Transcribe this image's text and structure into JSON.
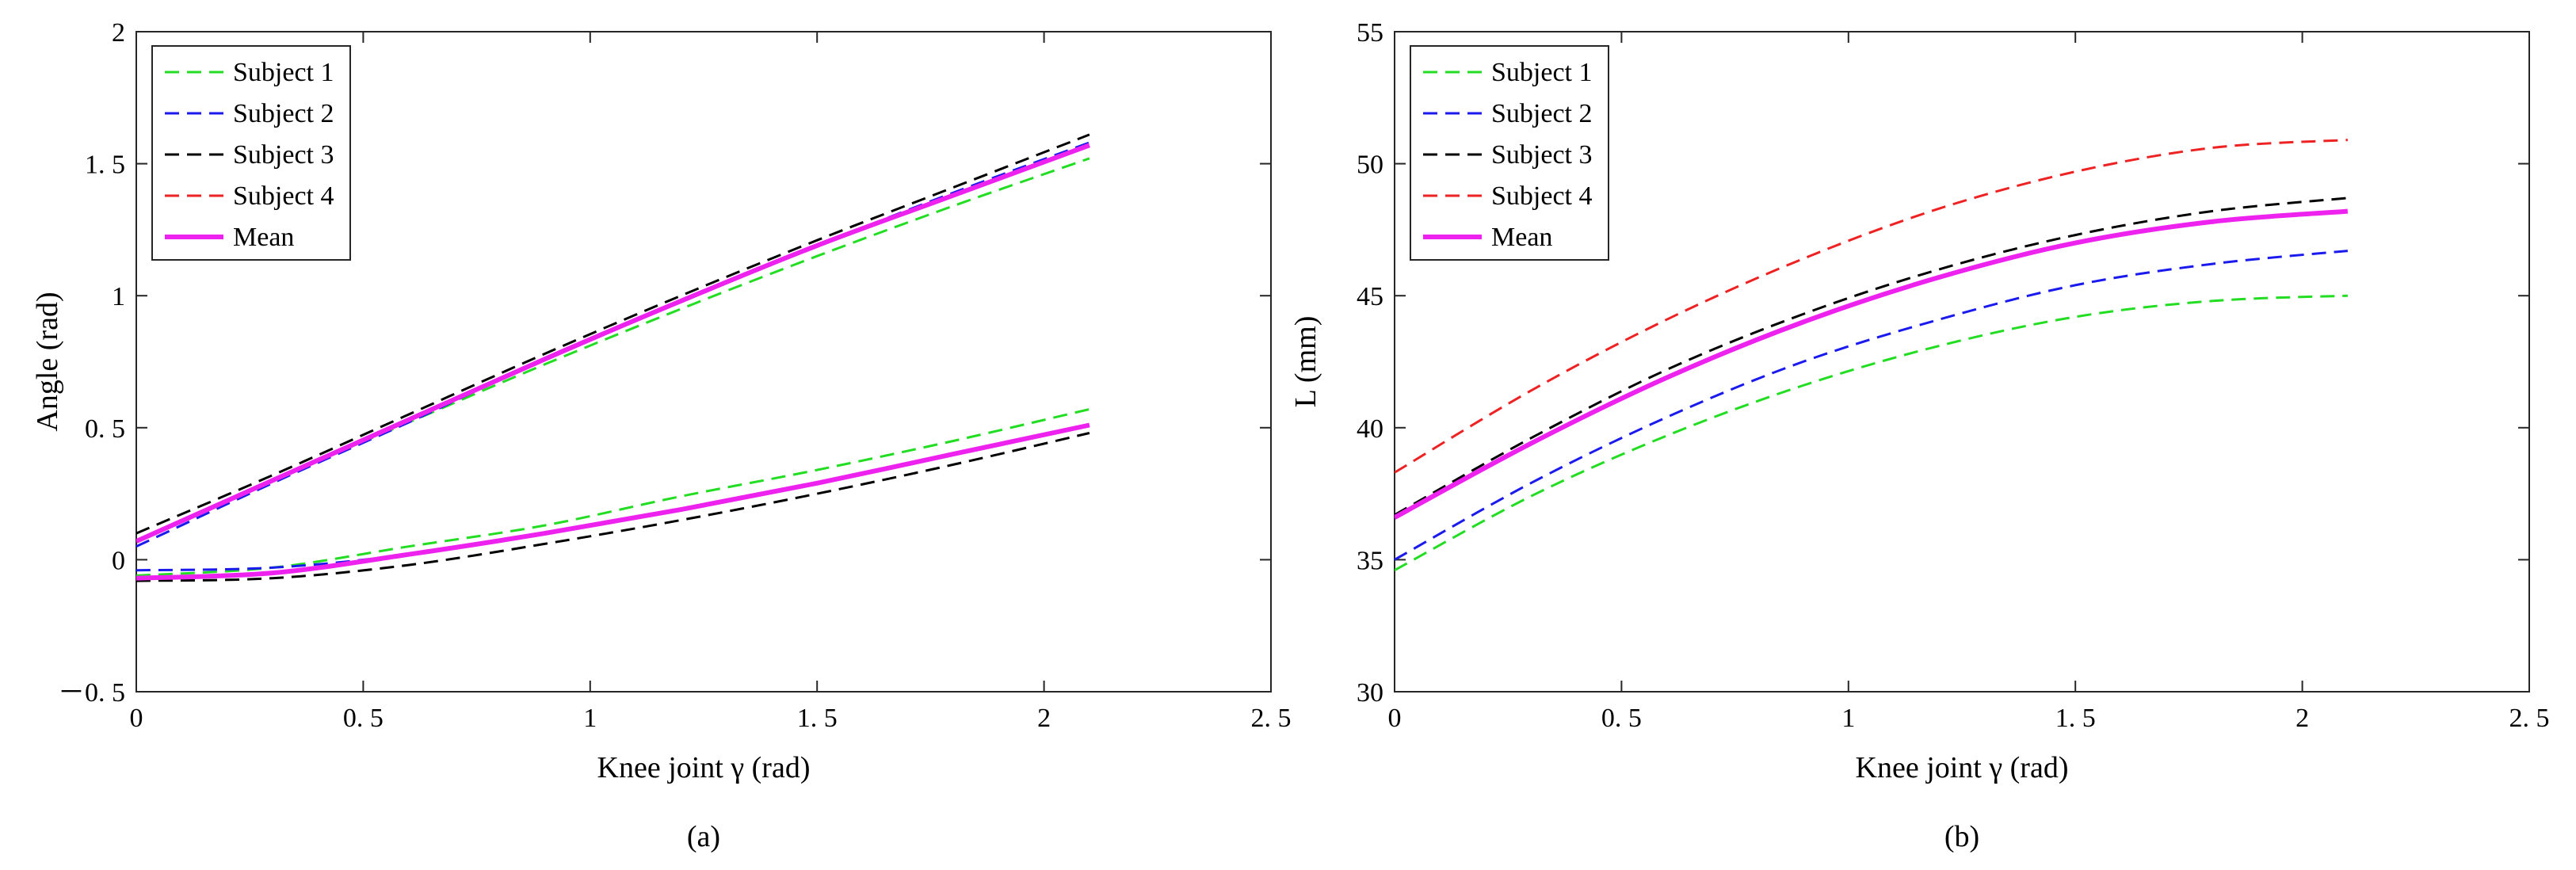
{
  "chart_data": [
    {
      "type": "line",
      "caption": "(a)",
      "xlabel": "Knee joint γ (rad)",
      "ylabel": "Angle (rad)",
      "xlim": [
        0,
        2.5
      ],
      "ylim": [
        -0.5,
        2
      ],
      "xticks": [
        0,
        0.5,
        1,
        1.5,
        2,
        2.5
      ],
      "xtick_labels": [
        "0",
        "0. 5",
        "1",
        "1. 5",
        "2",
        "2. 5"
      ],
      "yticks": [
        -0.5,
        0,
        0.5,
        1,
        1.5,
        2
      ],
      "ytick_labels": [
        "－0. 5",
        "0",
        "0. 5",
        "1",
        "1. 5",
        "2"
      ],
      "legend_position": "top-left",
      "series": [
        {
          "name": "Subject 1",
          "color": "#22dd22",
          "style": "dashed",
          "group": "upper",
          "x": [
            0,
            0.3,
            0.6,
            0.9,
            1.2,
            1.5,
            1.8,
            2.1
          ],
          "y": [
            0.07,
            0.3,
            0.52,
            0.74,
            0.95,
            1.15,
            1.34,
            1.52
          ]
        },
        {
          "name": "Subject 2",
          "color": "#1a1aee",
          "style": "dashed",
          "group": "upper",
          "x": [
            0,
            0.3,
            0.6,
            0.9,
            1.2,
            1.5,
            1.8,
            2.1
          ],
          "y": [
            0.05,
            0.29,
            0.52,
            0.76,
            0.98,
            1.19,
            1.39,
            1.58
          ]
        },
        {
          "name": "Subject 3",
          "color": "#000000",
          "style": "dashed",
          "group": "upper",
          "x": [
            0,
            0.3,
            0.6,
            0.9,
            1.2,
            1.5,
            1.8,
            2.1
          ],
          "y": [
            0.1,
            0.32,
            0.55,
            0.78,
            1.0,
            1.21,
            1.41,
            1.61
          ]
        },
        {
          "name": "Mean",
          "color": "#ee22ee",
          "style": "solid",
          "group": "upper",
          "x": [
            0,
            0.3,
            0.6,
            0.9,
            1.2,
            1.5,
            1.8,
            2.1
          ],
          "y": [
            0.07,
            0.3,
            0.53,
            0.76,
            0.98,
            1.19,
            1.38,
            1.57
          ]
        },
        {
          "name": "Subject 1",
          "color": "#22dd22",
          "style": "dashed",
          "group": "lower",
          "x": [
            0,
            0.3,
            0.6,
            0.9,
            1.2,
            1.5,
            1.8,
            2.1
          ],
          "y": [
            -0.06,
            -0.03,
            0.05,
            0.13,
            0.24,
            0.34,
            0.45,
            0.57
          ]
        },
        {
          "name": "Subject 2",
          "color": "#1a1aee",
          "style": "dashed",
          "group": "lower",
          "x": [
            0,
            0.3,
            0.6,
            0.9,
            1.2,
            1.5,
            1.8,
            2.1
          ],
          "y": [
            -0.04,
            -0.03,
            0.02,
            0.1,
            0.19,
            0.29,
            0.4,
            0.51
          ]
        },
        {
          "name": "Subject 3",
          "color": "#000000",
          "style": "dashed",
          "group": "lower",
          "x": [
            0,
            0.3,
            0.6,
            0.9,
            1.2,
            1.5,
            1.8,
            2.1
          ],
          "y": [
            -0.08,
            -0.07,
            -0.02,
            0.06,
            0.15,
            0.25,
            0.36,
            0.48
          ]
        },
        {
          "name": "Mean",
          "color": "#ee22ee",
          "style": "solid",
          "group": "lower",
          "x": [
            0,
            0.3,
            0.6,
            0.9,
            1.2,
            1.5,
            1.8,
            2.1
          ],
          "y": [
            -0.07,
            -0.05,
            0.02,
            0.1,
            0.19,
            0.29,
            0.4,
            0.51
          ]
        }
      ],
      "legend": [
        {
          "name": "Subject 1",
          "color": "#22dd22",
          "style": "dashed"
        },
        {
          "name": "Subject 2",
          "color": "#1a1aee",
          "style": "dashed"
        },
        {
          "name": "Subject 3",
          "color": "#000000",
          "style": "dashed"
        },
        {
          "name": "Subject 4",
          "color": "#ee2222",
          "style": "dashed"
        },
        {
          "name": "Mean",
          "color": "#ee22ee",
          "style": "solid"
        }
      ]
    },
    {
      "type": "line",
      "caption": "(b)",
      "xlabel": "Knee joint γ (rad)",
      "ylabel": "L (mm)",
      "xlim": [
        0,
        2.5
      ],
      "ylim": [
        30,
        55
      ],
      "xticks": [
        0,
        0.5,
        1,
        1.5,
        2,
        2.5
      ],
      "xtick_labels": [
        "0",
        "0. 5",
        "1",
        "1. 5",
        "2",
        "2. 5"
      ],
      "yticks": [
        30,
        35,
        40,
        45,
        50,
        55
      ],
      "ytick_labels": [
        "30",
        "35",
        "40",
        "45",
        "50",
        "55"
      ],
      "legend_position": "top-left",
      "series": [
        {
          "name": "Subject 1",
          "color": "#22dd22",
          "style": "dashed",
          "x": [
            0,
            0.3,
            0.6,
            0.9,
            1.2,
            1.5,
            1.8,
            2.1
          ],
          "y": [
            34.6,
            37.4,
            39.7,
            41.6,
            43.1,
            44.2,
            44.8,
            45.0
          ]
        },
        {
          "name": "Subject 2",
          "color": "#1a1aee",
          "style": "dashed",
          "x": [
            0,
            0.3,
            0.6,
            0.9,
            1.2,
            1.5,
            1.8,
            2.1
          ],
          "y": [
            35.0,
            37.9,
            40.4,
            42.5,
            44.1,
            45.4,
            46.2,
            46.7
          ]
        },
        {
          "name": "Subject 3",
          "color": "#000000",
          "style": "dashed",
          "x": [
            0,
            0.3,
            0.6,
            0.9,
            1.2,
            1.5,
            1.8,
            2.1
          ],
          "y": [
            36.7,
            39.6,
            42.2,
            44.3,
            46.0,
            47.3,
            48.2,
            48.7
          ]
        },
        {
          "name": "Subject 4",
          "color": "#ee2222",
          "style": "dashed",
          "x": [
            0,
            0.3,
            0.6,
            0.9,
            1.2,
            1.5,
            1.8,
            2.1
          ],
          "y": [
            38.3,
            41.4,
            44.1,
            46.4,
            48.3,
            49.7,
            50.6,
            50.9
          ]
        },
        {
          "name": "Mean",
          "color": "#ee22ee",
          "style": "solid",
          "x": [
            0,
            0.3,
            0.6,
            0.9,
            1.2,
            1.5,
            1.8,
            2.1
          ],
          "y": [
            36.6,
            39.4,
            41.9,
            44.0,
            45.7,
            47.0,
            47.8,
            48.2
          ]
        }
      ],
      "legend": [
        {
          "name": "Subject 1",
          "color": "#22dd22",
          "style": "dashed"
        },
        {
          "name": "Subject 2",
          "color": "#1a1aee",
          "style": "dashed"
        },
        {
          "name": "Subject 3",
          "color": "#000000",
          "style": "dashed"
        },
        {
          "name": "Subject 4",
          "color": "#ee2222",
          "style": "dashed"
        },
        {
          "name": "Mean",
          "color": "#ee22ee",
          "style": "solid"
        }
      ]
    }
  ]
}
